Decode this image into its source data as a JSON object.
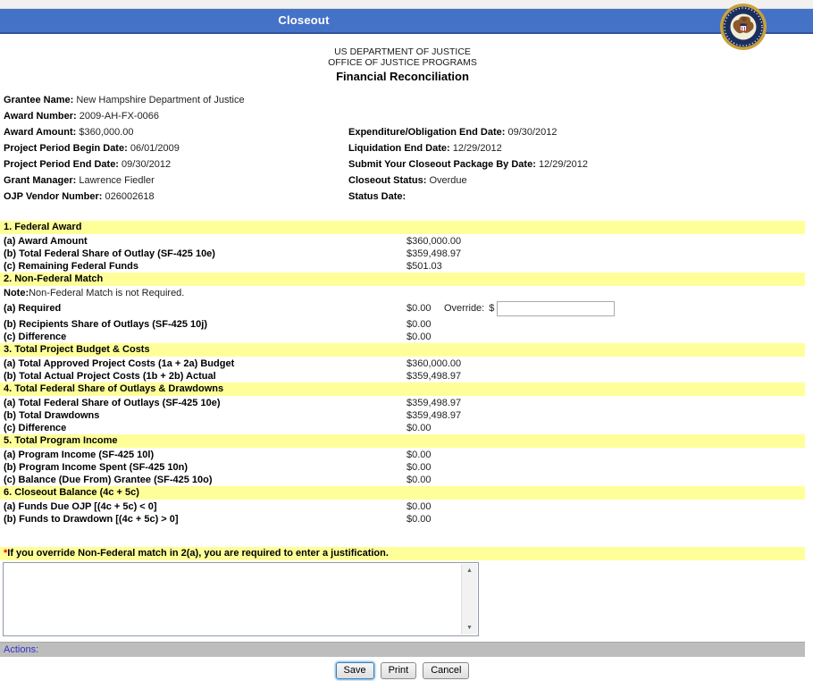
{
  "header": {
    "title": "Closeout",
    "agency_line1": "US DEPARTMENT OF JUSTICE",
    "agency_line2": "OFFICE OF JUSTICE PROGRAMS",
    "page_title": "Financial Reconciliation",
    "seal": "doj-seal"
  },
  "colors": {
    "header_bar_blue": "#4472C7",
    "section_header_yellow": "#FFFF99",
    "actions_bar_gray": "#BDBDBD",
    "actions_label_blue": "#3333CC",
    "required_marker_red": "#FF0000"
  },
  "grantee_info": {
    "left": [
      {
        "label": "Grantee Name:",
        "value": "New Hampshire Department of Justice"
      },
      {
        "label": "Award Number:",
        "value": "2009-AH-FX-0066"
      },
      {
        "label": "Award Amount:",
        "value": "$360,000.00"
      },
      {
        "label": "Project Period Begin Date:",
        "value": "06/01/2009"
      },
      {
        "label": "Project Period End Date:",
        "value": "09/30/2012"
      },
      {
        "label": "Grant Manager:",
        "value": "Lawrence Fiedler"
      },
      {
        "label": "OJP Vendor Number:",
        "value": "026002618"
      }
    ],
    "right": [
      {
        "label": "Expenditure/Obligation End Date:",
        "value": "09/30/2012"
      },
      {
        "label": "Liquidation End Date:",
        "value": "12/29/2012"
      },
      {
        "label": "Submit Your Closeout Package By Date:",
        "value": "12/29/2012"
      },
      {
        "label": "Closeout Status:",
        "value": "Overdue"
      },
      {
        "label": "Status Date:",
        "value": ""
      }
    ]
  },
  "reconciliation": {
    "sections": [
      {
        "title": "1. Federal Award",
        "rows": [
          {
            "label": "(a) Award Amount",
            "value": "$360,000.00"
          },
          {
            "label": "(b) Total Federal Share of Outlay (SF-425 10e)",
            "value": "$359,498.97"
          },
          {
            "label": "(c) Remaining Federal Funds",
            "value": "$501.03"
          }
        ]
      },
      {
        "title": "2. Non-Federal Match",
        "note_label": "Note:",
        "note_text": "Non-Federal Match is not Required.",
        "rows": [
          {
            "label": "(a) Required",
            "value": "$0.00",
            "override": {
              "label": "Override:",
              "currency": "$",
              "input_value": ""
            }
          },
          {
            "label": "(b) Recipients Share of Outlays (SF-425 10j)",
            "value": "$0.00"
          },
          {
            "label": "(c) Difference",
            "value": "$0.00"
          }
        ]
      },
      {
        "title": "3. Total Project Budget & Costs",
        "rows": [
          {
            "label": "(a) Total Approved Project Costs (1a + 2a) Budget",
            "value": "$360,000.00"
          },
          {
            "label": "(b) Total Actual Project Costs (1b + 2b) Actual",
            "value": "$359,498.97"
          }
        ]
      },
      {
        "title": "4. Total Federal Share of Outlays & Drawdowns",
        "rows": [
          {
            "label": "(a) Total Federal Share of Outlays (SF-425 10e)",
            "value": "$359,498.97"
          },
          {
            "label": "(b) Total Drawdowns",
            "value": "$359,498.97"
          },
          {
            "label": "(c) Difference",
            "value": "$0.00"
          }
        ]
      },
      {
        "title": "5. Total Program Income",
        "rows": [
          {
            "label": "(a) Program Income (SF-425 10l)",
            "value": "$0.00"
          },
          {
            "label": "(b) Program Income Spent (SF-425 10n)",
            "value": "$0.00"
          },
          {
            "label": "(c) Balance (Due From) Grantee (SF-425 10o)",
            "value": "$0.00"
          }
        ]
      },
      {
        "title": "6. Closeout Balance (4c + 5c)",
        "rows": [
          {
            "label": "(a) Funds Due OJP [(4c + 5c) < 0]",
            "value": "$0.00"
          },
          {
            "label": "(b) Funds to Drawdown [(4c + 5c) > 0]",
            "value": "$0.00"
          }
        ]
      }
    ]
  },
  "justification": {
    "required_marker": "*",
    "text": "If you override Non-Federal match in 2(a), you are required to enter a justification.",
    "textarea_value": ""
  },
  "actions": {
    "label": "Actions:",
    "buttons": [
      {
        "label": "Save"
      },
      {
        "label": "Print"
      },
      {
        "label": "Cancel"
      }
    ]
  },
  "icons": {
    "scroll_up": "▲",
    "scroll_down": "▼"
  }
}
